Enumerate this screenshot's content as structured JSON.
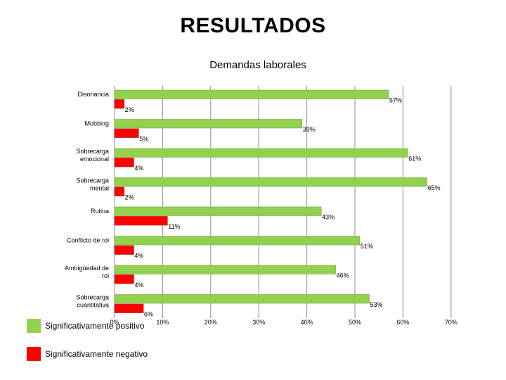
{
  "title": "RESULTADOS",
  "chart_data": {
    "type": "bar",
    "orientation": "horizontal",
    "title": "Demandas laborales",
    "categories": [
      "Disonancia",
      "Mobbing",
      "Sobrecarga emocional",
      "Sobrecarga mental",
      "Rutina",
      "Conflicto de rol",
      "Ambigüedad de rol",
      "Sobrecarga cuantitativa"
    ],
    "series": [
      {
        "name": "Significativamente positivo",
        "color": "#92d050",
        "values": [
          57,
          39,
          61,
          65,
          43,
          51,
          46,
          53
        ],
        "labels": [
          "57%",
          "39%",
          "61%",
          "65%",
          "43%",
          "51%",
          "46%",
          "53%"
        ]
      },
      {
        "name": "Significativamente negativo",
        "color": "#ff0000",
        "values": [
          2,
          5,
          4,
          2,
          11,
          4,
          4,
          6
        ],
        "labels": [
          "2%",
          "5%",
          "4%",
          "2%",
          "11%",
          "4%",
          "4%",
          "6%"
        ]
      }
    ],
    "xlim": [
      0,
      70
    ],
    "xticks": [
      "0%",
      "10%",
      "20%",
      "30%",
      "40%",
      "50%",
      "60%",
      "70%"
    ],
    "grid": true,
    "legend_position": "bottom-left"
  }
}
